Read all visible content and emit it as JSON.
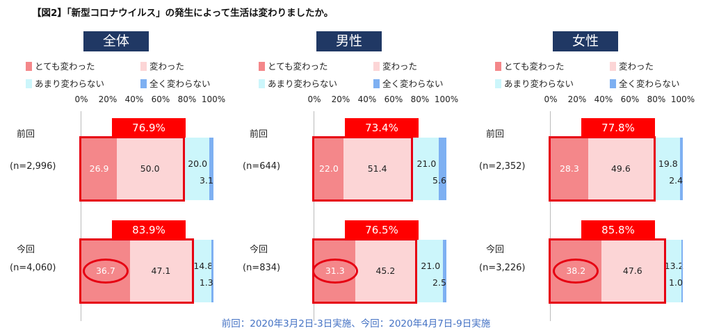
{
  "title": "【図2】「新型コロナウイルス」の発生によって生活は変わりましたか。",
  "legend": [
    {
      "label": "とても変わった",
      "color": "#f4878a"
    },
    {
      "label": "変わった",
      "color": "#fcd5d6"
    },
    {
      "label": "あまり変わらない",
      "color": "#ccf6fb"
    },
    {
      "label": "全く変わらない",
      "color": "#7eb0f2"
    }
  ],
  "axis_ticks": [
    "0%",
    "20%",
    "40%",
    "60%",
    "80%",
    "100%"
  ],
  "footnote": "前回：2020年3月2日-3日実施、今回：2020年4月7日-9日実施",
  "chart_data": {
    "type": "bar",
    "title": "【図2】「新型コロナウイルス」の発生によって生活は変わりましたか。",
    "stacked": true,
    "orientation": "horizontal",
    "xlim": [
      0,
      100
    ],
    "categories_legend": [
      "とても変わった",
      "変わった",
      "あまり変わらない",
      "全く変わらない"
    ],
    "panels": [
      {
        "name": "全体",
        "rows": [
          {
            "label": "前回",
            "n": "(n=2,996)",
            "values": [
              26.9,
              50.0,
              20.0,
              3.1
            ],
            "labels": [
              "26.9",
              "50.0",
              "20.0",
              "3.1"
            ],
            "total": "76.9%"
          },
          {
            "label": "今回",
            "n": "(n=4,060)",
            "values": [
              36.7,
              47.1,
              14.8,
              1.3
            ],
            "labels": [
              "36.7",
              "47.1",
              "14.8",
              "1.3"
            ],
            "total": "83.9%"
          }
        ]
      },
      {
        "name": "男性",
        "rows": [
          {
            "label": "前回",
            "n": "(n=644)",
            "values": [
              22.0,
              51.4,
              21.0,
              5.6
            ],
            "labels": [
              "22.0",
              "51.4",
              "21.0",
              "5.6"
            ],
            "total": "73.4%"
          },
          {
            "label": "今回",
            "n": "(n=834)",
            "values": [
              31.3,
              45.2,
              21.0,
              2.5
            ],
            "labels": [
              "31.3",
              "45.2",
              "21.0",
              "2.5"
            ],
            "total": "76.5%"
          }
        ]
      },
      {
        "name": "女性",
        "rows": [
          {
            "label": "前回",
            "n": "(n=2,352)",
            "values": [
              28.3,
              49.6,
              19.8,
              2.4
            ],
            "labels": [
              "28.3",
              "49.6",
              "19.8",
              "2.4"
            ],
            "total": "77.8%"
          },
          {
            "label": "今回",
            "n": "(n=3,226)",
            "values": [
              38.2,
              47.6,
              13.2,
              1.0
            ],
            "labels": [
              "38.2",
              "47.6",
              "13.2",
              "1.0"
            ],
            "total": "85.8%"
          }
        ]
      }
    ]
  }
}
